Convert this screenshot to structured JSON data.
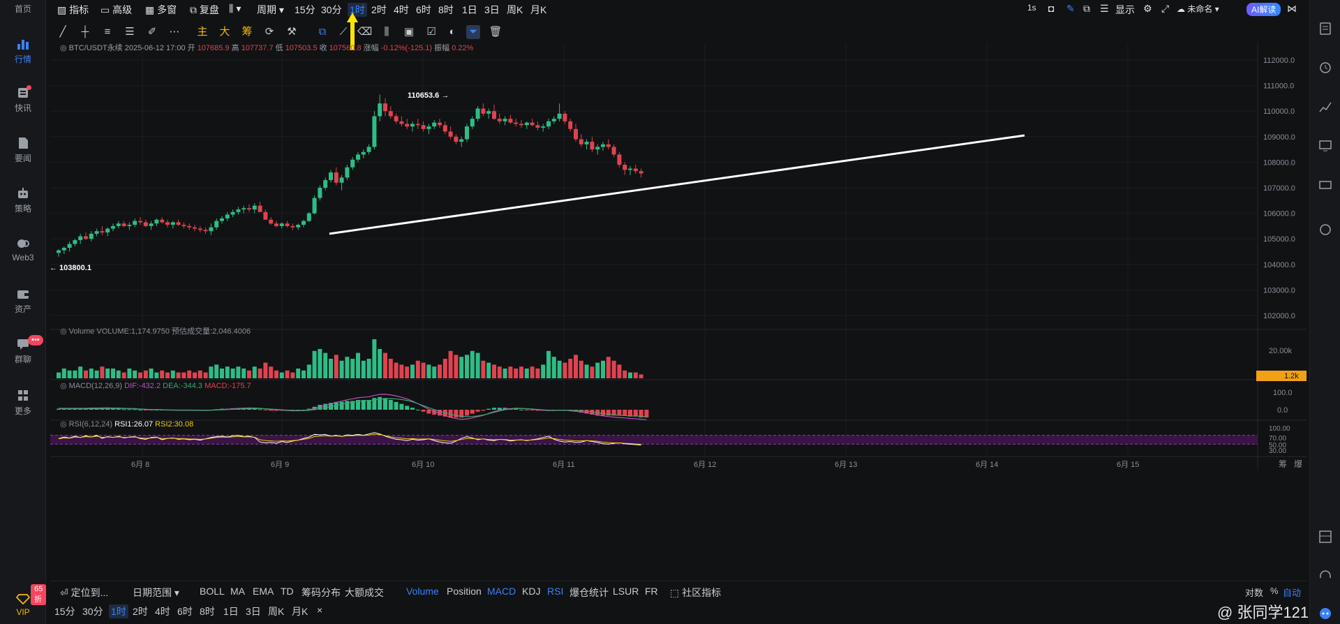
{
  "nav": {
    "home": "首页",
    "items": [
      "行情",
      "快讯",
      "要闻",
      "策略",
      "Web3",
      "资产",
      "群聊",
      "更多"
    ],
    "vip": "VIP",
    "vip_discount": "65折",
    "chat_badge": "•••"
  },
  "toolbar": {
    "indicators": "指标",
    "advanced": "高级",
    "multi_window": "多窗",
    "replay": "复盘",
    "period": "周期",
    "intervals": [
      "15分",
      "30分",
      "1时",
      "2时",
      "4时",
      "6时",
      "8时",
      "1日",
      "3日",
      "周K",
      "月K"
    ],
    "active_interval": "1时",
    "right_interval": "1s",
    "display": "显示",
    "unnamed": "未命名",
    "ai_label": "AI解读"
  },
  "drawtools": {
    "main": "主",
    "big": "大",
    "chips": "筹"
  },
  "ohlc": {
    "symbol": "BTC/USDT永续",
    "datetime": "2025-06-12 17:00",
    "open_label": "开",
    "open": "107685.9",
    "high_label": "高",
    "high": "107737.7",
    "low_label": "低",
    "low": "107503.5",
    "close_label": "收",
    "close": "107560.8",
    "change_label": "涨幅",
    "change": "-0.12%(-125.1)",
    "amp_label": "振幅",
    "amp": "0.22%"
  },
  "annotations": {
    "high_mark": "110653.6 →",
    "low_mark": "← 103800.1"
  },
  "volume_header": {
    "label": "Volume",
    "value": "VOLUME:1,174.9750",
    "est_label": "预估成交量:2,046.4006"
  },
  "macd_header": {
    "label": "MACD(12,26,9)",
    "dif": "DIF:-432.2",
    "dea": "DEA:-344.3",
    "macd": "MACD:-175.7"
  },
  "rsi_header": {
    "label": "RSI(6,12,24)",
    "rsi1": "RSI1:26.07",
    "rsi2": "RSI2:30.08"
  },
  "price_axis": [
    "112000.0",
    "111000.0",
    "110000.0",
    "109000.0",
    "108000.0",
    "107000.0",
    "106000.0",
    "105000.0",
    "104000.0",
    "103000.0",
    "102000.0"
  ],
  "volume_axis": [
    "20.00k"
  ],
  "volume_current": "1.2k",
  "macd_axis": [
    "100.0",
    "0.0"
  ],
  "rsi_axis": [
    "100.00",
    "70.00",
    "50.00",
    "30.00"
  ],
  "date_axis": [
    "6月 8",
    "6月 9",
    "6月 10",
    "6月 11",
    "6月 12",
    "6月 13",
    "6月 14",
    "6月 15"
  ],
  "corner_labels": [
    "筹",
    "爆"
  ],
  "bottom_bar1": {
    "locate": "定位到...",
    "date_range": "日期范围",
    "indicators": [
      "BOLL",
      "MA",
      "EMA",
      "TD",
      "筹码分布",
      "大额成交"
    ],
    "sub_indicators": [
      "Volume",
      "Position",
      "MACD",
      "KDJ",
      "RSI",
      "爆仓统计",
      "LSUR",
      "FR"
    ],
    "community": "社区指标",
    "log": "对数",
    "percent": "%",
    "auto": "自动"
  },
  "bottom_bar2": {
    "intervals": [
      "15分",
      "30分",
      "1时",
      "2时",
      "4时",
      "6时",
      "8时",
      "1日",
      "3日",
      "周K",
      "月K"
    ],
    "active": "1时",
    "close": "×"
  },
  "watermark": "@ 张同学121",
  "colors": {
    "up": "#2ebd85",
    "down": "#e0434f",
    "accent": "#3b82f6",
    "bg": "#111214"
  },
  "chart_data": {
    "type": "candlestick",
    "title": "BTC/USDT永续 1时",
    "ylim": [
      101500,
      112500
    ],
    "candles": [
      [
        104450,
        104600,
        104300,
        104550
      ],
      [
        104550,
        104700,
        104400,
        104650
      ],
      [
        104650,
        104900,
        104500,
        104800
      ],
      [
        104800,
        105000,
        104700,
        104950
      ],
      [
        104950,
        105200,
        104800,
        105100
      ],
      [
        105100,
        105250,
        104950,
        105000
      ],
      [
        105000,
        105300,
        104900,
        105200
      ],
      [
        105200,
        105400,
        105100,
        105300
      ],
      [
        105300,
        105500,
        105150,
        105250
      ],
      [
        105250,
        105450,
        105100,
        105400
      ],
      [
        105400,
        105600,
        105300,
        105500
      ],
      [
        105500,
        105700,
        105400,
        105600
      ],
      [
        105600,
        105700,
        105450,
        105500
      ],
      [
        105500,
        105650,
        105350,
        105550
      ],
      [
        105550,
        105800,
        105450,
        105700
      ],
      [
        105700,
        105850,
        105550,
        105650
      ],
      [
        105650,
        105750,
        105450,
        105500
      ],
      [
        105500,
        105700,
        105350,
        105600
      ],
      [
        105600,
        105800,
        105500,
        105750
      ],
      [
        105750,
        105850,
        105600,
        105650
      ],
      [
        105650,
        105750,
        105450,
        105550
      ],
      [
        105550,
        105700,
        105400,
        105650
      ],
      [
        105650,
        105750,
        105500,
        105550
      ],
      [
        105550,
        105650,
        105400,
        105500
      ],
      [
        105500,
        105600,
        105350,
        105450
      ],
      [
        105450,
        105550,
        105300,
        105400
      ],
      [
        105400,
        105500,
        105250,
        105350
      ],
      [
        105350,
        105450,
        105200,
        105300
      ],
      [
        105300,
        105600,
        105150,
        105450
      ],
      [
        105450,
        105800,
        105350,
        105700
      ],
      [
        105700,
        105900,
        105600,
        105800
      ],
      [
        105800,
        106050,
        105700,
        105950
      ],
      [
        105950,
        106150,
        105850,
        106050
      ],
      [
        106050,
        106250,
        105950,
        106150
      ],
      [
        106150,
        106300,
        106000,
        106200
      ],
      [
        106200,
        106350,
        106050,
        106150
      ],
      [
        106150,
        106400,
        106000,
        106300
      ],
      [
        106300,
        106450,
        106100,
        106050
      ],
      [
        106050,
        106150,
        105800,
        105750
      ],
      [
        105750,
        105850,
        105550,
        105600
      ],
      [
        105600,
        105700,
        105450,
        105500
      ],
      [
        105500,
        105650,
        105400,
        105600
      ],
      [
        105600,
        105700,
        105450,
        105500
      ],
      [
        105500,
        105600,
        105350,
        105450
      ],
      [
        105450,
        105600,
        105350,
        105550
      ],
      [
        105550,
        105750,
        105450,
        105700
      ],
      [
        105700,
        106050,
        105650,
        106000
      ],
      [
        106000,
        106700,
        105950,
        106600
      ],
      [
        106600,
        107100,
        106500,
        107000
      ],
      [
        107000,
        107400,
        106900,
        107300
      ],
      [
        107300,
        107700,
        107200,
        107600
      ],
      [
        107600,
        107800,
        107100,
        107200
      ],
      [
        107200,
        107500,
        106900,
        107400
      ],
      [
        107400,
        107900,
        107300,
        107800
      ],
      [
        107800,
        108200,
        107700,
        108100
      ],
      [
        108100,
        108400,
        108000,
        108300
      ],
      [
        108300,
        108500,
        108150,
        108400
      ],
      [
        108400,
        108700,
        108300,
        108600
      ],
      [
        108600,
        110000,
        108500,
        109800
      ],
      [
        109800,
        110650,
        109600,
        110300
      ],
      [
        110300,
        110500,
        109800,
        110000
      ],
      [
        110000,
        110200,
        109700,
        109800
      ],
      [
        109800,
        109900,
        109500,
        109600
      ],
      [
        109600,
        109800,
        109400,
        109500
      ],
      [
        109500,
        109700,
        109300,
        109400
      ],
      [
        109400,
        109600,
        109200,
        109500
      ],
      [
        109500,
        109700,
        109300,
        109450
      ],
      [
        109450,
        109600,
        109200,
        109300
      ],
      [
        109300,
        109500,
        109100,
        109400
      ],
      [
        109400,
        109650,
        109300,
        109550
      ],
      [
        109550,
        109700,
        109350,
        109450
      ],
      [
        109450,
        109600,
        109100,
        109200
      ],
      [
        109200,
        109400,
        108900,
        109000
      ],
      [
        109000,
        109100,
        108700,
        108800
      ],
      [
        108800,
        109000,
        108600,
        108900
      ],
      [
        108900,
        109500,
        108800,
        109400
      ],
      [
        109400,
        109800,
        109300,
        109700
      ],
      [
        109700,
        110200,
        109600,
        110100
      ],
      [
        110100,
        110300,
        109800,
        109900
      ],
      [
        109900,
        110100,
        109700,
        110000
      ],
      [
        110000,
        110250,
        109650,
        109700
      ],
      [
        109700,
        109900,
        109500,
        109600
      ],
      [
        109600,
        109800,
        109450,
        109700
      ],
      [
        109700,
        109850,
        109500,
        109550
      ],
      [
        109550,
        109700,
        109400,
        109500
      ],
      [
        109500,
        109650,
        109350,
        109450
      ],
      [
        109450,
        109600,
        109300,
        109550
      ],
      [
        109550,
        109700,
        109400,
        109450
      ],
      [
        109450,
        109600,
        109250,
        109350
      ],
      [
        109350,
        109500,
        109200,
        109400
      ],
      [
        109400,
        109700,
        109300,
        109600
      ],
      [
        109600,
        109800,
        109500,
        109700
      ],
      [
        109700,
        110300,
        109600,
        109900
      ],
      [
        109900,
        110000,
        109500,
        109600
      ],
      [
        109600,
        109700,
        109200,
        109300
      ],
      [
        109300,
        109500,
        108800,
        108900
      ],
      [
        108900,
        109100,
        108600,
        108700
      ],
      [
        108700,
        108900,
        108500,
        108800
      ],
      [
        108800,
        109000,
        108400,
        108500
      ],
      [
        108500,
        108700,
        108300,
        108600
      ],
      [
        108600,
        108800,
        108450,
        108700
      ],
      [
        108700,
        108900,
        108500,
        108600
      ],
      [
        108600,
        108700,
        108200,
        108300
      ],
      [
        108300,
        108400,
        107800,
        107900
      ],
      [
        107900,
        108000,
        107500,
        107700
      ],
      [
        107700,
        107850,
        107500,
        107750
      ],
      [
        107750,
        107900,
        107550,
        107650
      ],
      [
        107650,
        107750,
        107400,
        107560
      ]
    ],
    "volumes": [
      3,
      5,
      4,
      4,
      6,
      4,
      5,
      4,
      6,
      5,
      5,
      4,
      3,
      5,
      4,
      3,
      4,
      5,
      3,
      4,
      3,
      4,
      3,
      3,
      4,
      3,
      4,
      3,
      6,
      7,
      5,
      6,
      5,
      6,
      5,
      4,
      6,
      5,
      8,
      6,
      4,
      3,
      4,
      3,
      5,
      4,
      7,
      14,
      15,
      13,
      10,
      12,
      9,
      11,
      10,
      13,
      9,
      10,
      20,
      15,
      13,
      10,
      8,
      7,
      6,
      7,
      9,
      8,
      7,
      6,
      7,
      10,
      14,
      12,
      11,
      12,
      14,
      13,
      9,
      8,
      7,
      6,
      5,
      6,
      5,
      6,
      5,
      6,
      5,
      7,
      14,
      11,
      9,
      8,
      10,
      12,
      9,
      7,
      6,
      8,
      9,
      11,
      9,
      7,
      4,
      3,
      3,
      2
    ],
    "macd_hist": [
      0.1,
      0.1,
      0.1,
      0.1,
      0.1,
      0.1,
      0.15,
      0.15,
      0.15,
      0.15,
      0.1,
      0.1,
      0.05,
      0.05,
      0.05,
      0.0,
      -0.05,
      -0.05,
      0.0,
      0.0,
      -0.05,
      -0.05,
      -0.05,
      -0.05,
      -0.05,
      -0.05,
      -0.05,
      -0.05,
      0.0,
      0.05,
      0.1,
      0.1,
      0.15,
      0.15,
      0.15,
      0.15,
      0.1,
      0.05,
      -0.05,
      -0.1,
      -0.1,
      -0.1,
      -0.1,
      -0.1,
      -0.05,
      0.0,
      0.1,
      0.3,
      0.5,
      0.6,
      0.7,
      0.8,
      0.8,
      0.9,
      0.9,
      1.0,
      1.0,
      1.0,
      1.2,
      1.3,
      1.2,
      1.0,
      0.8,
      0.6,
      0.4,
      0.2,
      0.0,
      -0.2,
      -0.4,
      -0.5,
      -0.6,
      -0.7,
      -0.8,
      -0.8,
      -0.8,
      -0.6,
      -0.4,
      -0.2,
      -0.1,
      0.1,
      0.2,
      0.2,
      0.2,
      0.1,
      0.1,
      0.0,
      -0.05,
      -0.05,
      -0.1,
      -0.1,
      -0.1,
      -0.05,
      0.0,
      0.0,
      -0.1,
      -0.2,
      -0.3,
      -0.4,
      -0.5,
      -0.6,
      -0.6,
      -0.6,
      -0.6,
      -0.6,
      -0.6,
      -0.7,
      -0.7,
      -0.8,
      -0.8
    ],
    "rsi1": [
      55,
      62,
      58,
      66,
      60,
      68,
      62,
      70,
      56,
      64,
      60,
      66,
      58,
      62,
      64,
      55,
      52,
      60,
      62,
      50,
      56,
      58,
      52,
      54,
      50,
      52,
      48,
      54,
      60,
      64,
      66,
      62,
      68,
      70,
      64,
      66,
      60,
      40,
      36,
      38,
      34,
      42,
      38,
      44,
      48,
      56,
      62,
      74,
      72,
      74,
      66,
      70,
      64,
      72,
      70,
      74,
      70,
      76,
      82,
      76,
      66,
      58,
      52,
      50,
      46,
      52,
      48,
      50,
      54,
      46,
      40,
      36,
      34,
      44,
      56,
      64,
      58,
      50,
      54,
      48,
      46,
      52,
      50,
      44,
      48,
      50,
      46,
      50,
      54,
      60,
      66,
      52,
      44,
      40,
      42,
      38,
      40,
      46,
      42,
      38,
      32,
      30,
      34,
      36,
      32,
      30,
      28,
      26
    ],
    "rsi2": [
      54,
      58,
      57,
      62,
      60,
      64,
      62,
      66,
      60,
      62,
      61,
      63,
      60,
      61,
      62,
      58,
      56,
      58,
      60,
      55,
      56,
      57,
      55,
      55,
      53,
      53,
      52,
      53,
      57,
      60,
      62,
      61,
      63,
      65,
      63,
      63,
      61,
      50,
      46,
      45,
      43,
      45,
      44,
      46,
      48,
      52,
      56,
      64,
      66,
      68,
      66,
      67,
      65,
      68,
      68,
      70,
      69,
      71,
      75,
      73,
      68,
      63,
      59,
      57,
      54,
      55,
      53,
      53,
      54,
      51,
      48,
      45,
      43,
      46,
      51,
      56,
      55,
      53,
      53,
      51,
      50,
      51,
      51,
      48,
      49,
      49,
      48,
      49,
      51,
      54,
      58,
      55,
      51,
      48,
      47,
      45,
      45,
      46,
      45,
      43,
      39,
      37,
      36,
      36,
      34,
      33,
      31,
      30
    ],
    "trendline": {
      "start_price": 105200,
      "end_price": 109050
    }
  }
}
